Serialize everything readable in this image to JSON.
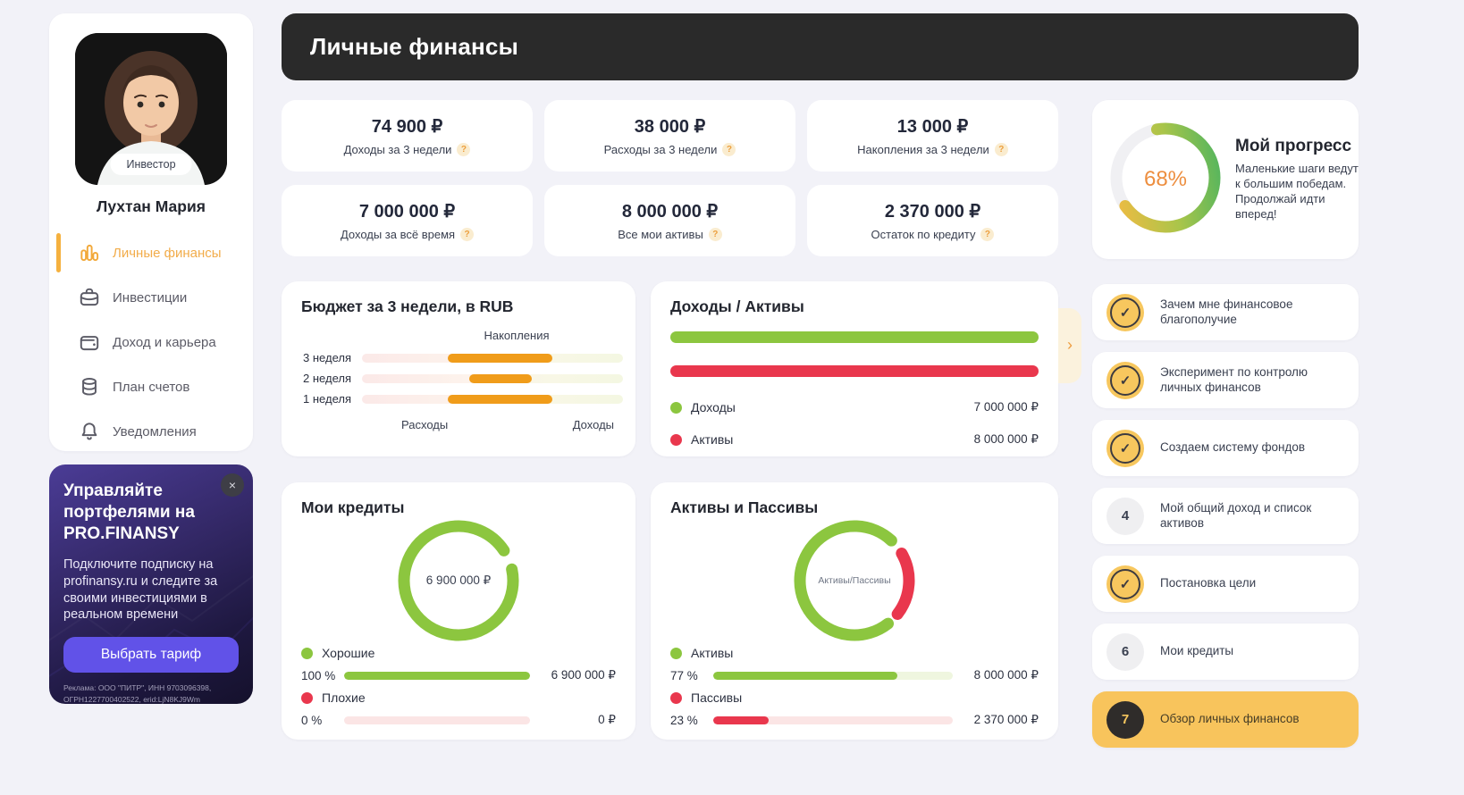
{
  "header": {
    "title": "Личные финансы"
  },
  "ui": {
    "help": "?",
    "chevron": "›",
    "close": "×",
    "check": "✓"
  },
  "sidebar": {
    "badge": "Инвестор",
    "name": "Лухтан Мария",
    "nav": [
      {
        "label": "Личные финансы",
        "icon": "bar-chart-icon",
        "active": true
      },
      {
        "label": "Инвестиции",
        "icon": "briefcase-icon",
        "active": false
      },
      {
        "label": "Доход и карьера",
        "icon": "wallet-icon",
        "active": false
      },
      {
        "label": "План счетов",
        "icon": "coins-icon",
        "active": false
      },
      {
        "label": "Уведомления",
        "icon": "bell-icon",
        "active": false
      }
    ]
  },
  "promo": {
    "title": "Управляйте портфелями на PRO.FINANSY",
    "body": "Подключите подписку на profinansy.ru и следите за своими инвестициями в реальном времени",
    "button": "Выбрать тариф",
    "legal": "Реклама: ООО \"ПИТР\", ИНН 9703096398, ОГРН1227700402522, erid:LjN8KJ9Wm"
  },
  "stats": [
    {
      "value": "74 900 ₽",
      "label": "Доходы за 3 недели"
    },
    {
      "value": "38 000 ₽",
      "label": "Расходы за 3 недели"
    },
    {
      "value": "13 000 ₽",
      "label": "Накопления за 3 недели"
    },
    {
      "value": "7 000 000 ₽",
      "label": "Доходы за всё время"
    },
    {
      "value": "8 000 000 ₽",
      "label": "Все мои активы"
    },
    {
      "value": "2 370 000 ₽",
      "label": "Остаток по кредиту"
    }
  ],
  "progress": {
    "title": "Мой прогресс",
    "message": "Маленькие шаги ведут к большим победам. Продолжай идти вперед!"
  },
  "chart_data": [
    {
      "id": "budget",
      "type": "bar",
      "orientation": "horizontal",
      "title": "Бюджет за 3 недели, в RUB",
      "top_axis_label": "Накопления",
      "bottom_axis_labels": [
        "Расходы",
        "Доходы"
      ],
      "categories": [
        "3 неделя",
        "2 неделя",
        "1 неделя"
      ],
      "bar_color": "#F09C1A",
      "bars": [
        {
          "category": "3 неделя",
          "left": "33%",
          "width": "40%"
        },
        {
          "category": "2 неделя",
          "left": "41%",
          "width": "24%"
        },
        {
          "category": "1 неделя",
          "left": "33%",
          "width": "40%"
        }
      ]
    },
    {
      "id": "income-assets",
      "type": "bar",
      "title": "Доходы / Активы",
      "series": [
        {
          "name": "Доходы",
          "value": 7000000,
          "display": "7 000 000 ₽",
          "color": "#8CC63F",
          "width": "100%"
        },
        {
          "name": "Активы",
          "value": 8000000,
          "display": "8 000 000 ₽",
          "color": "#E9374D",
          "width": "100%"
        }
      ]
    },
    {
      "id": "credits",
      "type": "donut",
      "title": "Мои кредиты",
      "center_label": "6 900 000 ₽",
      "slices": [
        {
          "name": "Хорошие",
          "percent": 100,
          "percent_label": "100 %",
          "value": 6900000,
          "display": "6 900 000 ₽",
          "color": "#8CC63F",
          "track_color": "#EFF6DF",
          "width": "100%"
        },
        {
          "name": "Плохие",
          "percent": 0,
          "percent_label": "0 %",
          "value": 0,
          "display": "0 ₽",
          "color": "#E9374D",
          "track_color": "#FBE5E5",
          "width": "0%"
        }
      ]
    },
    {
      "id": "assets-liabilities",
      "type": "donut",
      "title": "Активы и Пассивы",
      "center_label": "Активы/Пассивы",
      "slices": [
        {
          "name": "Активы",
          "percent": 77,
          "percent_label": "77 %",
          "value": 8000000,
          "display": "8 000 000 ₽",
          "color": "#8CC63F",
          "track_color": "#EFF6DF",
          "width": "77%"
        },
        {
          "name": "Пассивы",
          "percent": 23,
          "percent_label": "23 %",
          "value": 2370000,
          "display": "2 370 000 ₽",
          "color": "#E9374D",
          "track_color": "#FBE5E5",
          "width": "23%"
        }
      ]
    },
    {
      "id": "progress",
      "type": "donut",
      "percent": 68,
      "label": "68%",
      "gradient": [
        "#F6BA42",
        "#4FB45F"
      ],
      "track_color": "#F0F0F3"
    }
  ],
  "checklist": [
    {
      "label": "Зачем мне финансовое благополучие",
      "state": "done"
    },
    {
      "label": "Эксперимент по контролю личных финансов",
      "state": "done"
    },
    {
      "label": "Создаем систему фондов",
      "state": "done"
    },
    {
      "label": "Мой общий доход и список активов",
      "state": "number",
      "number": "4"
    },
    {
      "label": "Постановка цели",
      "state": "done"
    },
    {
      "label": "Мои кредиты",
      "state": "number",
      "number": "6"
    },
    {
      "label": "Обзор личных финансов",
      "state": "active",
      "number": "7"
    }
  ],
  "colors": {
    "accent_orange": "#F2AC4A",
    "green": "#8CC63F",
    "red": "#E9374D",
    "highlight_yellow": "#F8C45C",
    "header_dark": "#2A2A2A"
  }
}
